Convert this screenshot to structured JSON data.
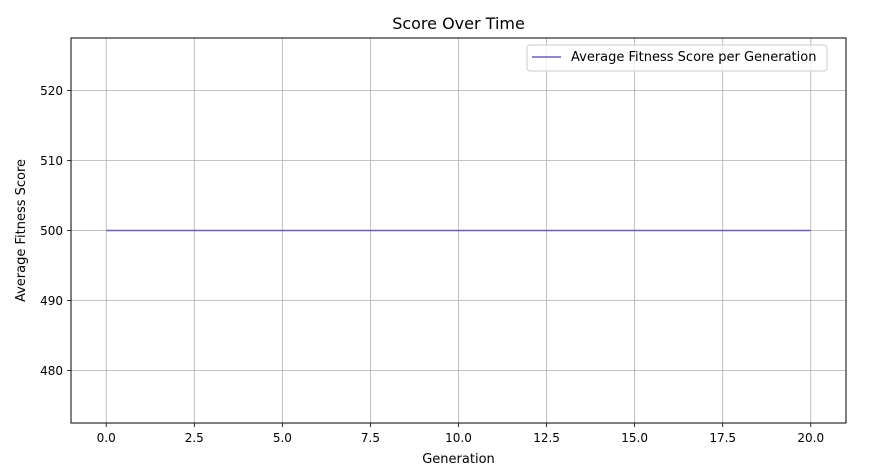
{
  "chart_data": {
    "type": "line",
    "title": "Score Over Time",
    "xlabel": "Generation",
    "ylabel": "Average Fitness Score",
    "xlim": [
      -1,
      21
    ],
    "ylim": [
      472.5,
      527.5
    ],
    "x_ticks": [
      0.0,
      2.5,
      5.0,
      7.5,
      10.0,
      12.5,
      15.0,
      17.5,
      20.0
    ],
    "x_tick_labels": [
      "0.0",
      "2.5",
      "5.0",
      "7.5",
      "10.0",
      "12.5",
      "15.0",
      "17.5",
      "20.0"
    ],
    "y_ticks": [
      480,
      490,
      500,
      510,
      520
    ],
    "y_tick_labels": [
      "480",
      "490",
      "500",
      "510",
      "520"
    ],
    "grid": true,
    "legend_position": "top-right",
    "series": [
      {
        "name": "Average Fitness Score per Generation",
        "color": "#6a5acd",
        "x": [
          0,
          20
        ],
        "y": [
          500,
          500
        ]
      }
    ]
  }
}
